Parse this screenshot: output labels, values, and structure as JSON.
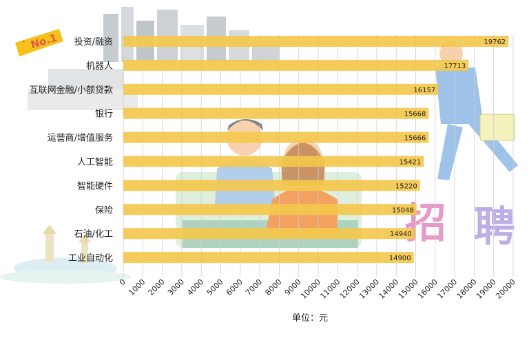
{
  "badge": {
    "text": "No.1",
    "color": "#f6c21a"
  },
  "decoration": {
    "text": "招聘",
    "colors": [
      "#e58fc2",
      "#b8a6e6",
      "#f1b3d6"
    ]
  },
  "colors": {
    "bar": "#f3c84d",
    "grid": "#cfcfcf"
  },
  "chart_data": {
    "type": "bar",
    "orientation": "horizontal",
    "categories": [
      "投资/融资",
      "机器人",
      "互联网金融/小额贷款",
      "银行",
      "运营商/增值服务",
      "人工智能",
      "智能硬件",
      "保险",
      "石油/化工",
      "工业自动化"
    ],
    "values": [
      19762,
      17713,
      16157,
      15668,
      15666,
      15421,
      15220,
      15048,
      14940,
      14900
    ],
    "value_labels": [
      "19762",
      "17713",
      "16157",
      "15668",
      "15666",
      "15421",
      "15220",
      "15048",
      "14940",
      "14900"
    ],
    "xticks": [
      "0",
      "1000",
      "2000",
      "3000",
      "4000",
      "5000",
      "6000",
      "7000",
      "8000",
      "9000",
      "10000",
      "11000",
      "12000",
      "13000",
      "14000",
      "15000",
      "16000",
      "17000",
      "18000",
      "19000",
      "20000"
    ],
    "xlim": [
      0,
      20000
    ],
    "xlabel": "单位：元",
    "grid": true
  }
}
